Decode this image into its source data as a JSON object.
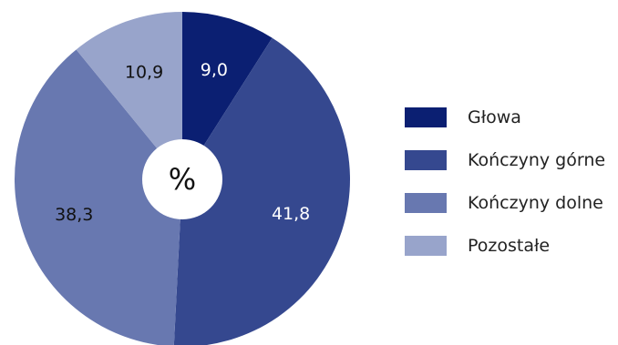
{
  "chart_data": {
    "type": "pie",
    "center_label": "%",
    "categories": [
      "Głowa",
      "Kończyny górne",
      "Kończyny dolne",
      "Pozostałe"
    ],
    "values": [
      9.0,
      41.8,
      38.3,
      10.9
    ],
    "value_labels": [
      "9,0",
      "41,8",
      "38,3",
      "10,9"
    ],
    "colors": [
      "#0b1f72",
      "#35488f",
      "#6878b0",
      "#98a4cb"
    ],
    "label_colors": [
      "#ffffff",
      "#ffffff",
      "#111111",
      "#111111"
    ],
    "legend_position": "right",
    "start_angle": "12 o'clock",
    "direction": "clockwise"
  }
}
